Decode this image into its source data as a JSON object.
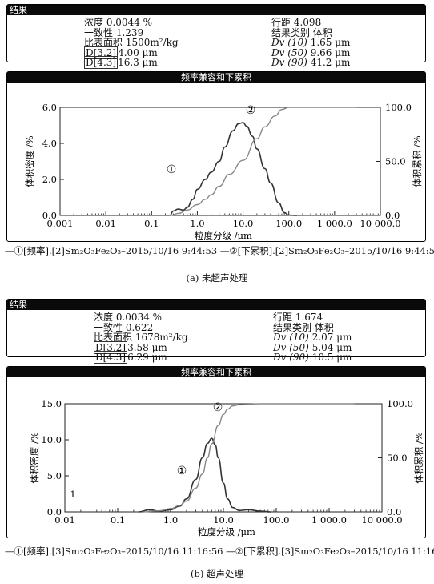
{
  "chart_data": [
    {
      "type": "line",
      "result_header": "结果",
      "chart_title": "频率兼容和下累积",
      "stats_left": [
        {
          "label": "浓度",
          "value": "0.0044 %"
        },
        {
          "label": "一致性",
          "value": "1.239"
        },
        {
          "label": "比表面积",
          "value": "1500m²/kg"
        },
        {
          "label": "D[3.2]",
          "value": "4.00 μm"
        },
        {
          "label": "D[4.3]",
          "value": "16.3 μm"
        }
      ],
      "stats_right": [
        {
          "label": "行距",
          "value": "4.098"
        },
        {
          "label": "结果类别",
          "value": "体积"
        },
        {
          "label": "Dv (10)",
          "value": "1.65 μm"
        },
        {
          "label": "Dv (50)",
          "value": "9.66 μm"
        },
        {
          "label": "Dv (90)",
          "value": "41.2 μm"
        }
      ],
      "xlabel": "粒度分级 /μm",
      "ylabel_left": "体积密度 /%",
      "ylabel_right": "体积累积 /%",
      "x_ticks": [
        "0.001",
        "0.01",
        "0.1",
        "1.0",
        "10.0",
        "100.0",
        "1 000.0",
        "10 000.0"
      ],
      "y_left_ticks": [
        "0.0",
        "2.0",
        "4.0",
        "6.0"
      ],
      "y_right_ticks": [
        "0.0",
        "50.0",
        "100.0"
      ],
      "ylim_left": [
        0,
        6
      ],
      "ylim_right": [
        0,
        100
      ],
      "xlim": [
        0.001,
        10000
      ],
      "x_scale": "log",
      "series": [
        {
          "marker": "①",
          "axis": "left",
          "x": [
            0.25,
            0.3,
            0.38,
            0.5,
            0.6,
            0.8,
            1.0,
            1.5,
            2.0,
            3.0,
            4.0,
            6.0,
            8.0,
            10.0,
            12.0,
            16.0,
            20.0,
            30.0,
            40.0,
            60.0,
            80.0,
            100.0,
            150.0
          ],
          "y": [
            0.0,
            0.25,
            0.35,
            0.3,
            0.45,
            0.9,
            1.45,
            2.0,
            2.4,
            3.0,
            3.8,
            4.7,
            5.1,
            5.15,
            4.95,
            4.4,
            3.7,
            2.6,
            1.8,
            0.7,
            0.15,
            0.02,
            0.0
          ]
        },
        {
          "marker": "②",
          "axis": "right",
          "x": [
            0.25,
            0.4,
            0.6,
            1.0,
            1.5,
            2.0,
            3.0,
            5.0,
            10.0,
            20.0,
            30.0,
            50.0,
            70.0,
            100.0,
            200.0,
            1000.0,
            3000.0
          ],
          "y": [
            0.0,
            2.0,
            5.0,
            10.0,
            15.0,
            19.0,
            27.0,
            38.0,
            51.0,
            71.0,
            82.0,
            92.0,
            98.0,
            100.0,
            100.0,
            100.0,
            100.0
          ]
        }
      ],
      "legend": "—①[频率].[2]Sm₂O₃Fe₂O₃–2015/10/16 9:44:53 —②[下累积].[2]Sm₂O₃Fe₂O₃–2015/10/16 9:44:5",
      "caption": "(a) 未超声处理"
    },
    {
      "type": "line",
      "result_header": "结果",
      "chart_title": "频率兼容和下累积",
      "stats_left": [
        {
          "label": "浓度",
          "value": "0.0034 %"
        },
        {
          "label": "一致性",
          "value": "0.622"
        },
        {
          "label": "比表面积",
          "value": "1678m²/kg"
        },
        {
          "label": "D[3.2]",
          "value": "3.58 μm"
        },
        {
          "label": "D[4.3]",
          "value": "6.29 μm"
        }
      ],
      "stats_right": [
        {
          "label": "行距",
          "value": "1.674"
        },
        {
          "label": "结果类别",
          "value": "体积"
        },
        {
          "label": "Dv (10)",
          "value": "2.07 μm"
        },
        {
          "label": "Dv (50)",
          "value": "5.04 μm"
        },
        {
          "label": "Dv (90)",
          "value": "10.5 μm"
        }
      ],
      "xlabel": "粒度分级 /μm",
      "ylabel_left": "体积密度 /%",
      "ylabel_right": "体积累积 /%",
      "x_ticks": [
        "0.01",
        "0.1",
        "1.0",
        "10.0",
        "100.0",
        "1 000.0",
        "10 000.0"
      ],
      "y_left_ticks": [
        "0.0",
        "5.0",
        "10.0",
        "15.0"
      ],
      "y_right_ticks": [
        "0.0",
        "50.0",
        "100.0"
      ],
      "ylim_left": [
        0,
        15
      ],
      "ylim_right": [
        0,
        100
      ],
      "xlim": [
        0.01,
        10000
      ],
      "x_scale": "log",
      "side_marker": "1",
      "series": [
        {
          "marker": "①",
          "axis": "left",
          "x": [
            0.25,
            0.4,
            0.6,
            1.0,
            1.5,
            2.0,
            3.0,
            4.0,
            5.0,
            6.0,
            7.0,
            8.0,
            10.0,
            12.0,
            15.0,
            20.0,
            30.0,
            50.0,
            80.0
          ],
          "y": [
            0.0,
            0.3,
            0.1,
            0.3,
            0.8,
            1.8,
            4.5,
            7.5,
            9.5,
            10.2,
            9.3,
            7.5,
            4.0,
            1.8,
            0.6,
            0.2,
            0.3,
            0.1,
            0.0
          ]
        },
        {
          "marker": "②",
          "axis": "right",
          "x": [
            0.3,
            0.6,
            1.0,
            1.5,
            2.0,
            3.0,
            4.0,
            5.0,
            6.0,
            8.0,
            10.0,
            12.0,
            15.0,
            20.0,
            30.0,
            50.0,
            100.0,
            500.0,
            3000.0
          ],
          "y": [
            0.0,
            1.0,
            3.0,
            6.0,
            10.0,
            22.0,
            35.0,
            50.0,
            63.0,
            80.0,
            90.0,
            95.0,
            98.0,
            99.0,
            99.5,
            100.0,
            100.0,
            100.0,
            100.0
          ]
        }
      ],
      "legend": "—①[频率].[3]Sm₂O₃Fe₂O₃–2015/10/16 11:16:56 —②[下累积].[3]Sm₂O₃Fe₂O₃–2015/10/16 11:16",
      "caption": "(b) 超声处理"
    }
  ]
}
